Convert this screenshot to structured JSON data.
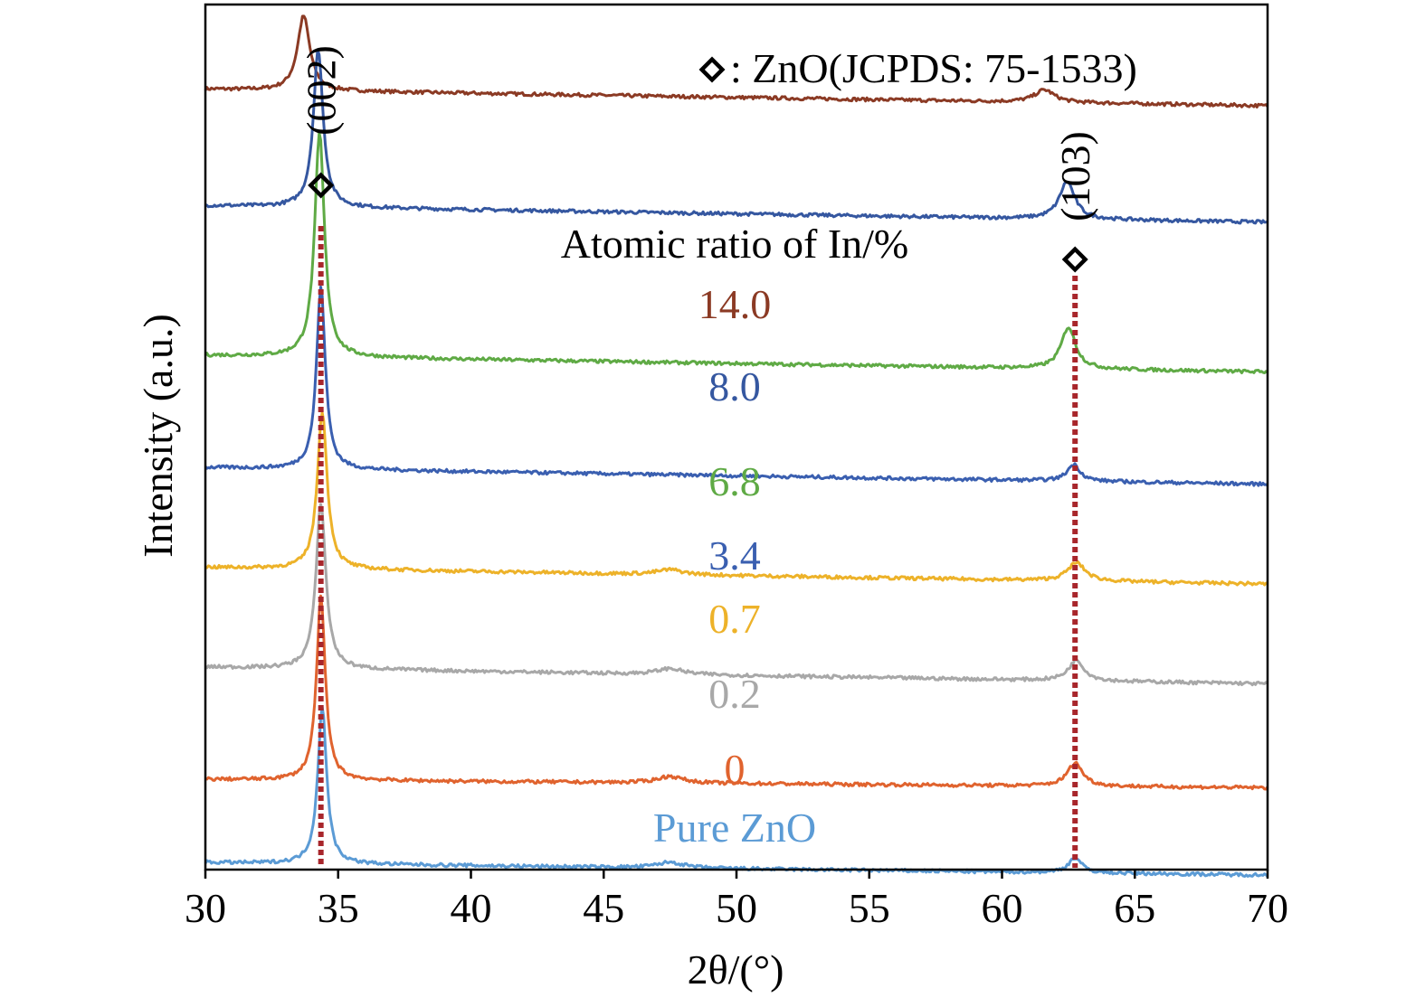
{
  "chart_data": {
    "type": "line",
    "title": "",
    "xlabel": "2θ/(°)",
    "ylabel": "Intensity (a.u.)",
    "xlim": [
      30,
      70
    ],
    "xticks": [
      "30",
      "35",
      "40",
      "45",
      "50",
      "55",
      "60",
      "65",
      "70"
    ],
    "y_ticks_shown": false,
    "grid": false,
    "legend_text": ": ZnO(JCPDS: 75-1533)",
    "legend_position": "top-right",
    "legend_marker": "open-diamond",
    "series_group_label": "Atomic ratio of In/%",
    "reference_lines": [
      {
        "x": 34.35,
        "label": "(002)",
        "color": "#a8262b",
        "style": "dotted"
      },
      {
        "x": 62.75,
        "label": "(103)",
        "color": "#a8262b",
        "style": "dotted"
      }
    ],
    "series": [
      {
        "name": "14.0",
        "color": "#8b3a24",
        "baseline": 0.92,
        "drift": -0.02,
        "peaks": [
          {
            "x": 33.7,
            "height": 0.09,
            "width": 0.28
          },
          {
            "x": 61.6,
            "height": 0.015,
            "width": 0.45
          }
        ]
      },
      {
        "name": "8.0",
        "color": "#3557a0",
        "baseline": 0.78,
        "drift": -0.02,
        "peaks": [
          {
            "x": 34.25,
            "height": 0.19,
            "width": 0.22
          },
          {
            "x": 62.45,
            "height": 0.045,
            "width": 0.35
          }
        ]
      },
      {
        "name": "6.8",
        "color": "#5faa45",
        "baseline": 0.6,
        "drift": -0.02,
        "peaks": [
          {
            "x": 34.3,
            "height": 0.27,
            "width": 0.22
          },
          {
            "x": 62.5,
            "height": 0.05,
            "width": 0.33
          }
        ]
      },
      {
        "name": "3.4",
        "color": "#3a5fb0",
        "baseline": 0.465,
        "drift": -0.02,
        "peaks": [
          {
            "x": 34.35,
            "height": 0.22,
            "width": 0.2
          },
          {
            "x": 62.7,
            "height": 0.02,
            "width": 0.3
          }
        ]
      },
      {
        "name": "0.7",
        "color": "#edb229",
        "baseline": 0.345,
        "drift": -0.02,
        "peaks": [
          {
            "x": 34.4,
            "height": 0.19,
            "width": 0.22
          },
          {
            "x": 62.8,
            "height": 0.022,
            "width": 0.4
          },
          {
            "x": 47.5,
            "height": 0.006,
            "width": 0.6
          }
        ]
      },
      {
        "name": "0.2",
        "color": "#a8a8a8",
        "baseline": 0.225,
        "drift": -0.02,
        "peaks": [
          {
            "x": 34.35,
            "height": 0.2,
            "width": 0.22
          },
          {
            "x": 62.8,
            "height": 0.025,
            "width": 0.35
          },
          {
            "x": 47.5,
            "height": 0.007,
            "width": 0.6
          }
        ]
      },
      {
        "name": "0",
        "color": "#e0632e",
        "baseline": 0.09,
        "drift": -0.01,
        "peaks": [
          {
            "x": 34.35,
            "height": 0.22,
            "width": 0.2
          },
          {
            "x": 62.75,
            "height": 0.028,
            "width": 0.35
          },
          {
            "x": 47.5,
            "height": 0.008,
            "width": 0.6
          }
        ]
      },
      {
        "name": "Pure ZnO",
        "color": "#5b9bd5",
        "baseline": -0.01,
        "drift": -0.015,
        "peaks": [
          {
            "x": 34.4,
            "height": 0.19,
            "width": 0.2
          },
          {
            "x": 62.75,
            "height": 0.018,
            "width": 0.3
          },
          {
            "x": 47.5,
            "height": 0.007,
            "width": 0.6
          }
        ]
      }
    ]
  }
}
